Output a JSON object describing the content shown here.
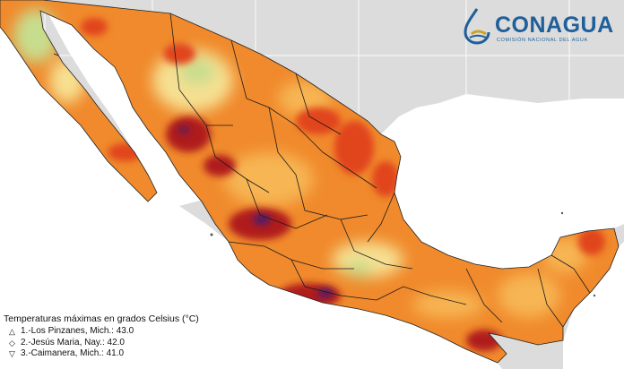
{
  "logo": {
    "name": "CONAGUA",
    "subtitle": "COMISIÓN NACIONAL DEL AGUA"
  },
  "legend": {
    "title": "Temperaturas máximas en grados Celsius (°C)",
    "entries": [
      {
        "marker": "△",
        "marker_icon": "triangle-up-icon",
        "label": "1.-Los Pinzanes, Mich.: 43.0"
      },
      {
        "marker": "◇",
        "marker_icon": "diamond-icon",
        "label": "2.-Jesús Maria, Nay.: 42.0"
      },
      {
        "marker": "▽",
        "marker_icon": "triangle-down-icon",
        "label": "3.-Caimanera, Mich.: 41.0"
      }
    ]
  },
  "colors": {
    "background": "#dcdcdc",
    "ocean": "#ffffff",
    "graticule": "#ffffff",
    "hot_extreme": "#4b1f6e",
    "very_hot": "#b01c1c",
    "hot": "#e1451d",
    "warm": "#f08a2c",
    "mild": "#f7b552",
    "cool": "#f6e092",
    "cooler": "#c7dd8e",
    "coolest": "#8fc28c",
    "state_borders": "#1a1a1a",
    "logo_blue": "#1f5f9a"
  }
}
